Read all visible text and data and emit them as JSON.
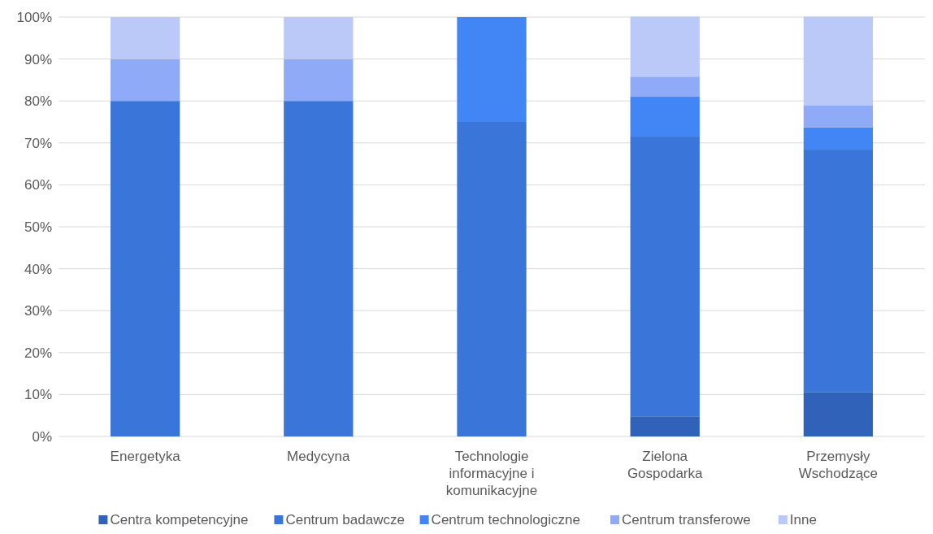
{
  "chart_data": {
    "type": "bar",
    "stacked": true,
    "categories": [
      "Energetyka",
      "Medycyna",
      "Technologie informacyjne i komunikacyjne",
      "Zielona Gospodarka",
      "Przemysły Wschodzące"
    ],
    "series": [
      {
        "name": "Centra kompetencyjne",
        "color": "#2f62b8",
        "values": [
          0,
          0,
          0,
          4.8,
          10.5
        ]
      },
      {
        "name": "Centrum badawcze",
        "color": "#3a76d9",
        "values": [
          80,
          80,
          75,
          66.7,
          57.9
        ]
      },
      {
        "name": "Centrum technologiczne",
        "color": "#4285f4",
        "values": [
          0,
          0,
          25,
          9.5,
          5.3
        ]
      },
      {
        "name": "Centrum transferowe",
        "color": "#8fabf7",
        "values": [
          10,
          10,
          0,
          4.8,
          5.3
        ]
      },
      {
        "name": "Inne",
        "color": "#bbc9f9",
        "values": [
          10,
          10,
          0,
          14.3,
          21.1
        ]
      }
    ],
    "ylim": [
      0,
      100
    ],
    "yticks": [
      {
        "value": 0,
        "label": "0%"
      },
      {
        "value": 10,
        "label": "10%"
      },
      {
        "value": 20,
        "label": "20%"
      },
      {
        "value": 30,
        "label": "30%"
      },
      {
        "value": 40,
        "label": "40%"
      },
      {
        "value": 50,
        "label": "50%"
      },
      {
        "value": 60,
        "label": "60%"
      },
      {
        "value": 70,
        "label": "70%"
      },
      {
        "value": 80,
        "label": "80%"
      },
      {
        "value": 90,
        "label": "90%"
      },
      {
        "value": 100,
        "label": "100%"
      }
    ],
    "grid": "y",
    "legend": "bottom"
  }
}
